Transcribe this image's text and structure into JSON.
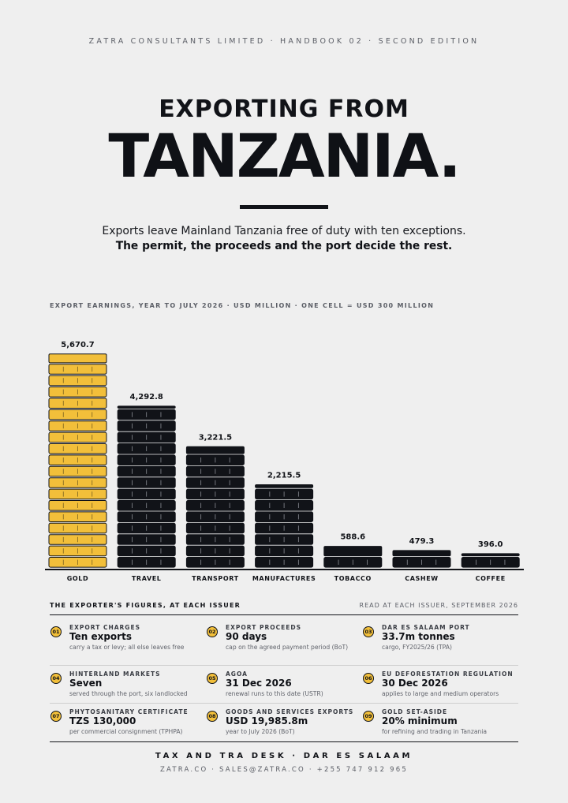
{
  "masthead": "ZATRA CONSULTANTS LIMITED · HANDBOOK 02 · SECOND EDITION",
  "kicker": "EXPORTING FROM",
  "headline": "TANZANIA.",
  "lede": "Exports leave Mainland Tanzania free of duty with ten exceptions.",
  "lede_strong": "The permit, the proceeds and the port decide the rest.",
  "chart_caption": "EXPORT EARNINGS, YEAR TO JULY 2026 · USD MILLION · ONE CELL = USD 300 MILLION",
  "chart_data": {
    "type": "bar",
    "title": "EXPORT EARNINGS, YEAR TO JULY 2026 · USD MILLION · ONE CELL = USD 300 MILLION",
    "unit": "USD million",
    "cell_value": 300,
    "categories": [
      "GOLD",
      "TRAVEL",
      "TRANSPORT",
      "MANUFACTURES",
      "TOBACCO",
      "CASHEW",
      "COFFEE"
    ],
    "values": [
      5670.7,
      4292.8,
      3221.5,
      2215.5,
      588.6,
      479.3,
      396.0
    ],
    "value_labels": [
      "5,670.7",
      "4,292.8",
      "3,221.5",
      "2,215.5",
      "588.6",
      "479.3",
      "396.0"
    ],
    "highlight_category": "GOLD",
    "colors": {
      "highlight": "#f2bf3a",
      "default": "#111318",
      "outline": "#111318"
    }
  },
  "figures": {
    "title": "THE EXPORTER'S FIGURES, AT EACH ISSUER",
    "note": "READ AT EACH ISSUER, SEPTEMBER 2026",
    "items": [
      {
        "num": "01",
        "label": "EXPORT CHARGES",
        "value": "Ten exports",
        "note": "carry a tax or levy; all else leaves free"
      },
      {
        "num": "02",
        "label": "EXPORT PROCEEDS",
        "value": "90 days",
        "note": "cap on the agreed payment period (BoT)"
      },
      {
        "num": "03",
        "label": "DAR ES SALAAM PORT",
        "value": "33.7m tonnes",
        "note": "cargo, FY2025/26 (TPA)"
      },
      {
        "num": "04",
        "label": "HINTERLAND MARKETS",
        "value": "Seven",
        "note": "served through the port, six landlocked"
      },
      {
        "num": "05",
        "label": "AGOA",
        "value": "31 Dec 2026",
        "note": "renewal runs to this date (USTR)"
      },
      {
        "num": "06",
        "label": "EU DEFORESTATION REGULATION",
        "value": "30 Dec 2026",
        "note": "applies to large and medium operators"
      },
      {
        "num": "07",
        "label": "PHYTOSANITARY CERTIFICATE",
        "value": "TZS 130,000",
        "note": "per commercial consignment (TPHPA)"
      },
      {
        "num": "08",
        "label": "GOODS AND SERVICES EXPORTS",
        "value": "USD 19,985.8m",
        "note": "year to July 2026 (BoT)"
      },
      {
        "num": "09",
        "label": "GOLD SET-ASIDE",
        "value": "20% minimum",
        "note": "for refining and trading in Tanzania"
      }
    ]
  },
  "footer": {
    "title": "TAX AND TRA DESK · DAR ES SALAAM",
    "contact": "ZATRA.CO · SALES@ZATRA.CO · +255 747 912 965"
  }
}
